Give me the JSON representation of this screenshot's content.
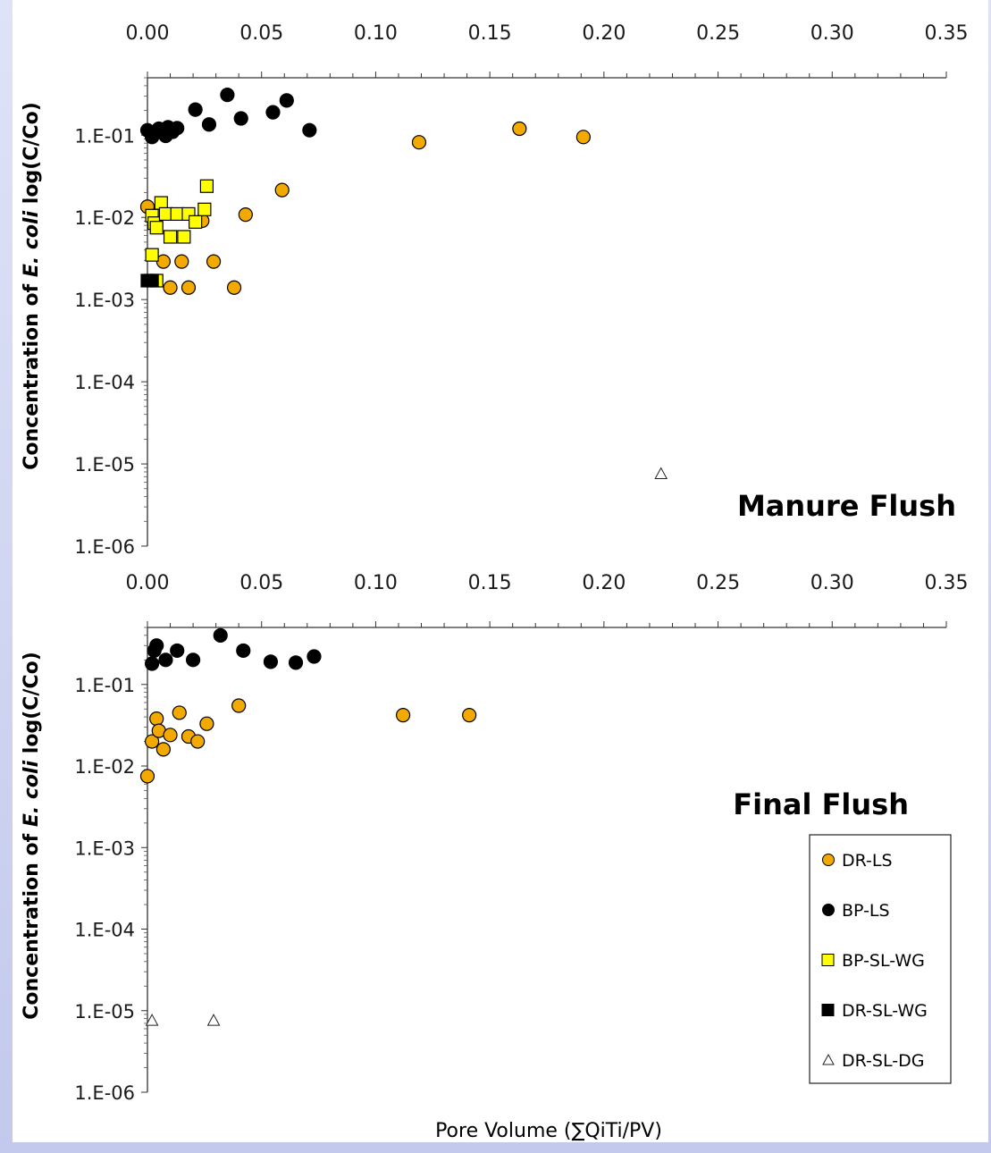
{
  "chart_data": [
    {
      "type": "scatter",
      "title": "Manure Flush",
      "xlabel": "",
      "ylabel_prefix": "Concentration of ",
      "ylabel_italic": "E. coli",
      "ylabel_suffix": " log(C/Co)",
      "xlim": [
        0,
        0.35
      ],
      "ylim": [
        1e-06,
        0.5
      ],
      "yscale": "log",
      "x_ticks": [
        "0.00",
        "0.05",
        "0.10",
        "0.15",
        "0.20",
        "0.25",
        "0.30",
        "0.35"
      ],
      "y_ticks": [
        "1.E-01",
        "1.E-02",
        "1.E-03",
        "1.E-04",
        "1.E-05",
        "1.E-06"
      ],
      "grid": false,
      "series": [
        {
          "name": "DR-LS",
          "marker": "circle",
          "color": "#f2a900",
          "points": [
            [
              0.0,
              0.0135
            ],
            [
              0.007,
              0.0029
            ],
            [
              0.01,
              0.0014
            ],
            [
              0.015,
              0.0029
            ],
            [
              0.018,
              0.0014
            ],
            [
              0.024,
              0.0091
            ],
            [
              0.029,
              0.0029
            ],
            [
              0.038,
              0.0014
            ],
            [
              0.043,
              0.0108
            ],
            [
              0.059,
              0.0215
            ],
            [
              0.119,
              0.082
            ],
            [
              0.163,
              0.12
            ],
            [
              0.191,
              0.095
            ]
          ]
        },
        {
          "name": "BP-LS",
          "marker": "circle",
          "color": "#000000",
          "points": [
            [
              0.0,
              0.115
            ],
            [
              0.002,
              0.095
            ],
            [
              0.004,
              0.11
            ],
            [
              0.005,
              0.12
            ],
            [
              0.008,
              0.098
            ],
            [
              0.009,
              0.125
            ],
            [
              0.011,
              0.11
            ],
            [
              0.013,
              0.122
            ],
            [
              0.021,
              0.205
            ],
            [
              0.027,
              0.135
            ],
            [
              0.035,
              0.31
            ],
            [
              0.041,
              0.16
            ],
            [
              0.055,
              0.19
            ],
            [
              0.061,
              0.265
            ],
            [
              0.071,
              0.115
            ]
          ]
        },
        {
          "name": "BP-SL-WG",
          "marker": "square",
          "color": "#ffff00",
          "points": [
            [
              0.002,
              0.0105
            ],
            [
              0.002,
              0.0035
            ],
            [
              0.003,
              0.0085
            ],
            [
              0.004,
              0.0075
            ],
            [
              0.004,
              0.0017
            ],
            [
              0.006,
              0.015
            ],
            [
              0.008,
              0.011
            ],
            [
              0.01,
              0.0058
            ],
            [
              0.013,
              0.011
            ],
            [
              0.016,
              0.0058
            ],
            [
              0.018,
              0.011
            ],
            [
              0.021,
              0.0088
            ],
            [
              0.025,
              0.0125
            ],
            [
              0.026,
              0.024
            ]
          ]
        },
        {
          "name": "DR-SL-WG",
          "marker": "square",
          "color": "#000000",
          "points": [
            [
              0.0,
              0.0017
            ],
            [
              0.002,
              0.0017
            ]
          ]
        },
        {
          "name": "DR-SL-DG",
          "marker": "triangle",
          "color": "#ffffff",
          "points": [
            [
              0.225,
              7.5e-06
            ]
          ]
        }
      ]
    },
    {
      "type": "scatter",
      "title": "Final Flush",
      "xlabel": "Pore Volume (∑QiTi/PV)",
      "ylabel_prefix": "Concentration of ",
      "ylabel_italic": "E. coli",
      "ylabel_suffix": " log(C/Co)",
      "xlim": [
        0,
        0.35
      ],
      "ylim": [
        1e-06,
        0.5
      ],
      "yscale": "log",
      "x_ticks": [
        "0.00",
        "0.05",
        "0.10",
        "0.15",
        "0.20",
        "0.25",
        "0.30",
        "0.35"
      ],
      "y_ticks": [
        "1.E-01",
        "1.E-02",
        "1.E-03",
        "1.E-04",
        "1.E-05",
        "1.E-06"
      ],
      "grid": false,
      "legend_position": "lower-right",
      "series": [
        {
          "name": "DR-LS",
          "marker": "circle",
          "color": "#f2a900",
          "points": [
            [
              0.0,
              0.0075
            ],
            [
              0.002,
              0.02
            ],
            [
              0.004,
              0.038
            ],
            [
              0.005,
              0.027
            ],
            [
              0.007,
              0.016
            ],
            [
              0.01,
              0.024
            ],
            [
              0.014,
              0.045
            ],
            [
              0.018,
              0.023
            ],
            [
              0.022,
              0.02
            ],
            [
              0.026,
              0.033
            ],
            [
              0.04,
              0.055
            ],
            [
              0.112,
              0.042
            ],
            [
              0.141,
              0.042
            ]
          ]
        },
        {
          "name": "BP-LS",
          "marker": "circle",
          "color": "#000000",
          "points": [
            [
              0.002,
              0.18
            ],
            [
              0.003,
              0.26
            ],
            [
              0.004,
              0.3
            ],
            [
              0.008,
              0.2
            ],
            [
              0.013,
              0.26
            ],
            [
              0.02,
              0.2
            ],
            [
              0.032,
              0.4
            ],
            [
              0.042,
              0.26
            ],
            [
              0.054,
              0.19
            ],
            [
              0.065,
              0.185
            ],
            [
              0.073,
              0.22
            ]
          ]
        },
        {
          "name": "BP-SL-WG",
          "marker": "square",
          "color": "#ffff00",
          "points": []
        },
        {
          "name": "DR-SL-WG",
          "marker": "square",
          "color": "#000000",
          "points": []
        },
        {
          "name": "DR-SL-DG",
          "marker": "triangle",
          "color": "#ffffff",
          "points": [
            [
              0.002,
              7.5e-06
            ],
            [
              0.029,
              7.5e-06
            ]
          ]
        }
      ]
    }
  ]
}
